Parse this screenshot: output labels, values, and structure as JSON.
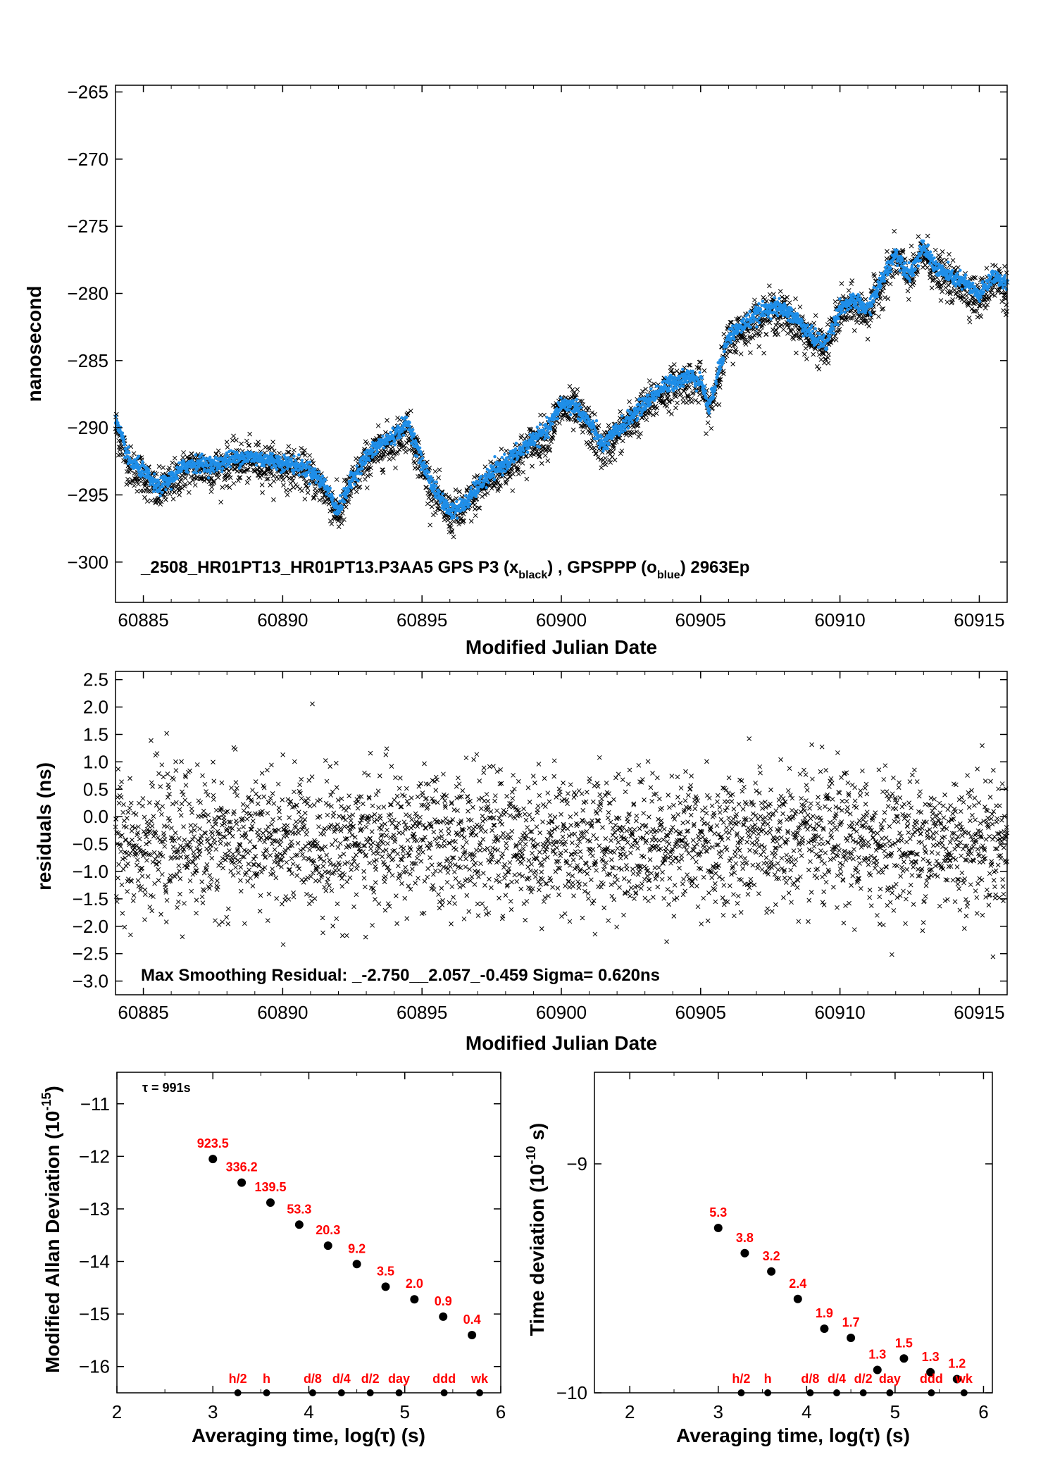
{
  "colors": {
    "black": "#000000",
    "blue": "#1f8ee8",
    "red": "#ff0000"
  },
  "chart_data": [
    {
      "id": "time-series",
      "type": "scatter",
      "xlabel": "Modified Julian Date",
      "ylabel": "nanosecond",
      "xlim": [
        60884.0,
        60916.0
      ],
      "ylim": [
        -303.0,
        -264.5
      ],
      "xticks": [
        60885,
        60890,
        60895,
        60900,
        60905,
        60910,
        60915
      ],
      "yticks": [
        -265,
        -270,
        -275,
        -280,
        -285,
        -290,
        -295,
        -300
      ],
      "xtick_labels": [
        "60885",
        "60890",
        "60895",
        "60900",
        "60905",
        "60910",
        "60915"
      ],
      "ytick_labels": [
        "−265",
        "−270",
        "−275",
        "−280",
        "−285",
        "−290",
        "−295",
        "−300"
      ],
      "annotation": {
        "prefix": "_2508_HR01PT13_HR01PT13.P3AA5     GPS P3 (x",
        "sub1": "black",
        "mid": ") ,  GPSPPP (o",
        "sub2": "blue",
        "suffix": ")  2963Ep"
      },
      "series": [
        {
          "marker": "x",
          "color": "#000000",
          "noise": 0.75,
          "offset": -0.35,
          "count": 2963
        },
        {
          "marker": "o",
          "color": "#1f8ee8",
          "noise": 0.3,
          "offset": 0.0,
          "count": 2963
        }
      ],
      "trend": {
        "x": [
          60884.0,
          60884.5,
          60885.0,
          60885.5,
          60886.0,
          60886.5,
          60887.0,
          60887.5,
          60888.0,
          60888.5,
          60889.0,
          60889.5,
          60890.0,
          60890.5,
          60891.0,
          60891.5,
          60892.0,
          60892.5,
          60893.0,
          60893.5,
          60894.0,
          60894.5,
          60895.0,
          60895.5,
          60896.0,
          60896.5,
          60897.0,
          60897.5,
          60898.0,
          60898.5,
          60899.0,
          60899.5,
          60900.0,
          60900.5,
          60901.0,
          60901.5,
          60902.0,
          60902.5,
          60903.0,
          60903.5,
          60904.0,
          60904.5,
          60905.0,
          60905.3,
          60905.6,
          60906.0,
          60906.5,
          60907.0,
          60907.5,
          60908.0,
          60908.5,
          60909.0,
          60909.5,
          60910.0,
          60910.5,
          60911.0,
          60911.5,
          60912.0,
          60912.5,
          60913.0,
          60913.5,
          60914.0,
          60914.5,
          60915.0,
          60915.5,
          60916.0
        ],
        "y": [
          -289.5,
          -292.5,
          -293.2,
          -294.5,
          -293.8,
          -292.8,
          -292.6,
          -292.8,
          -292.4,
          -292.2,
          -292.2,
          -292.4,
          -292.6,
          -292.8,
          -293.2,
          -294.2,
          -296.2,
          -293.8,
          -292.2,
          -291.2,
          -290.6,
          -289.6,
          -292.6,
          -294.8,
          -296.2,
          -295.8,
          -294.4,
          -293.4,
          -292.6,
          -291.8,
          -290.8,
          -290.2,
          -288.2,
          -288.4,
          -289.6,
          -291.4,
          -290.2,
          -289.2,
          -288.2,
          -287.2,
          -286.6,
          -286.2,
          -286.4,
          -288.6,
          -286.0,
          -283.2,
          -282.4,
          -281.6,
          -281.0,
          -281.2,
          -282.0,
          -283.2,
          -283.8,
          -281.0,
          -280.6,
          -281.2,
          -279.0,
          -277.0,
          -278.6,
          -276.6,
          -278.2,
          -278.8,
          -279.2,
          -280.2,
          -278.6,
          -279.4
        ]
      }
    },
    {
      "id": "residuals",
      "type": "scatter",
      "xlabel": "Modified Julian Date",
      "ylabel": "residuals (ns)",
      "xlim": [
        60884.0,
        60916.0
      ],
      "ylim": [
        -3.25,
        2.65
      ],
      "xticks": [
        60885,
        60890,
        60895,
        60900,
        60905,
        60910,
        60915
      ],
      "yticks": [
        2.5,
        2.0,
        1.5,
        1.0,
        0.5,
        0.0,
        -0.5,
        -1.0,
        -1.5,
        -2.0,
        -2.5,
        -3.0
      ],
      "xtick_labels": [
        "60885",
        "60890",
        "60895",
        "60900",
        "60905",
        "60910",
        "60915"
      ],
      "ytick_labels": [
        "2.5",
        "2.0",
        "1.5",
        "1.0",
        "0.5",
        "0.0",
        "−0.5",
        "−1.0",
        "−1.5",
        "−2.0",
        "−2.5",
        "−3.0"
      ],
      "annotation": "Max Smoothing Residual: _-2.750__2.057_-0.459  Sigma= 0.620ns",
      "stats": {
        "min": -2.75,
        "max": 2.057,
        "mean": -0.459,
        "sigma": 0.62
      },
      "series": [
        {
          "marker": "x",
          "color": "#000000",
          "count": 2963
        }
      ]
    },
    {
      "id": "mod-allan-deviation",
      "type": "scatter",
      "xlabel": "Averaging time, log(τ) (s)",
      "ylabel_main": "Modified Allan Deviation (10",
      "ylabel_sup": "-15",
      "ylabel_end": ")",
      "xlim": [
        2,
        6
      ],
      "ylim": [
        -16.5,
        -10.4
      ],
      "xticks": [
        2,
        3,
        4,
        5,
        6
      ],
      "yticks": [
        -11,
        -12,
        -13,
        -14,
        -15,
        -16
      ],
      "xtick_labels": [
        "2",
        "3",
        "4",
        "5",
        "6"
      ],
      "ytick_labels": [
        "−11",
        "−12",
        "−13",
        "−14",
        "−15",
        "−16"
      ],
      "tau_label": "τ = 991s",
      "x": [
        3.0,
        3.3,
        3.6,
        3.9,
        4.2,
        4.5,
        4.8,
        5.1,
        5.4,
        5.7
      ],
      "y": [
        -12.05,
        -12.5,
        -12.88,
        -13.3,
        -13.7,
        -14.05,
        -14.48,
        -14.72,
        -15.05,
        -15.4
      ],
      "data_labels": [
        "923.5",
        "336.2",
        "139.5",
        "53.3",
        "20.3",
        "9.2",
        "3.5",
        "2.0",
        "0.9",
        "0.4"
      ],
      "markers": {
        "x": [
          3.26,
          3.56,
          4.04,
          4.34,
          4.64,
          4.94,
          5.41,
          5.78
        ],
        "labels": [
          "h/2",
          "h",
          "d/8",
          "d/4",
          "d/2",
          "day",
          "ddd",
          "wk"
        ]
      }
    },
    {
      "id": "time-deviation",
      "type": "scatter",
      "xlabel": "Averaging time, log(τ) (s)",
      "ylabel_main": "Time deviation (10",
      "ylabel_sup": "-10",
      "ylabel_end": " s)",
      "xlim": [
        1.6,
        6.1
      ],
      "ylim": [
        -10.0,
        -8.6
      ],
      "xticks": [
        2,
        3,
        4,
        5,
        6
      ],
      "yticks": [
        -9,
        -10
      ],
      "xtick_labels": [
        "2",
        "3",
        "4",
        "5",
        "6"
      ],
      "ytick_labels": [
        "−9",
        "−10"
      ],
      "x": [
        3.0,
        3.3,
        3.6,
        3.9,
        4.2,
        4.5,
        4.8,
        5.1,
        5.4,
        5.7
      ],
      "y": [
        -9.28,
        -9.39,
        -9.47,
        -9.59,
        -9.72,
        -9.76,
        -9.9,
        -9.85,
        -9.91,
        -9.94
      ],
      "data_labels": [
        "5.3",
        "3.8",
        "3.2",
        "2.4",
        "1.9",
        "1.7",
        "1.3",
        "1.5",
        "1.3",
        "1.2"
      ],
      "markers": {
        "x": [
          3.26,
          3.56,
          4.04,
          4.34,
          4.64,
          4.94,
          5.41,
          5.78
        ],
        "labels": [
          "h/2",
          "h",
          "d/8",
          "d/4",
          "d/2",
          "day",
          "ddd",
          "wk"
        ]
      }
    }
  ]
}
